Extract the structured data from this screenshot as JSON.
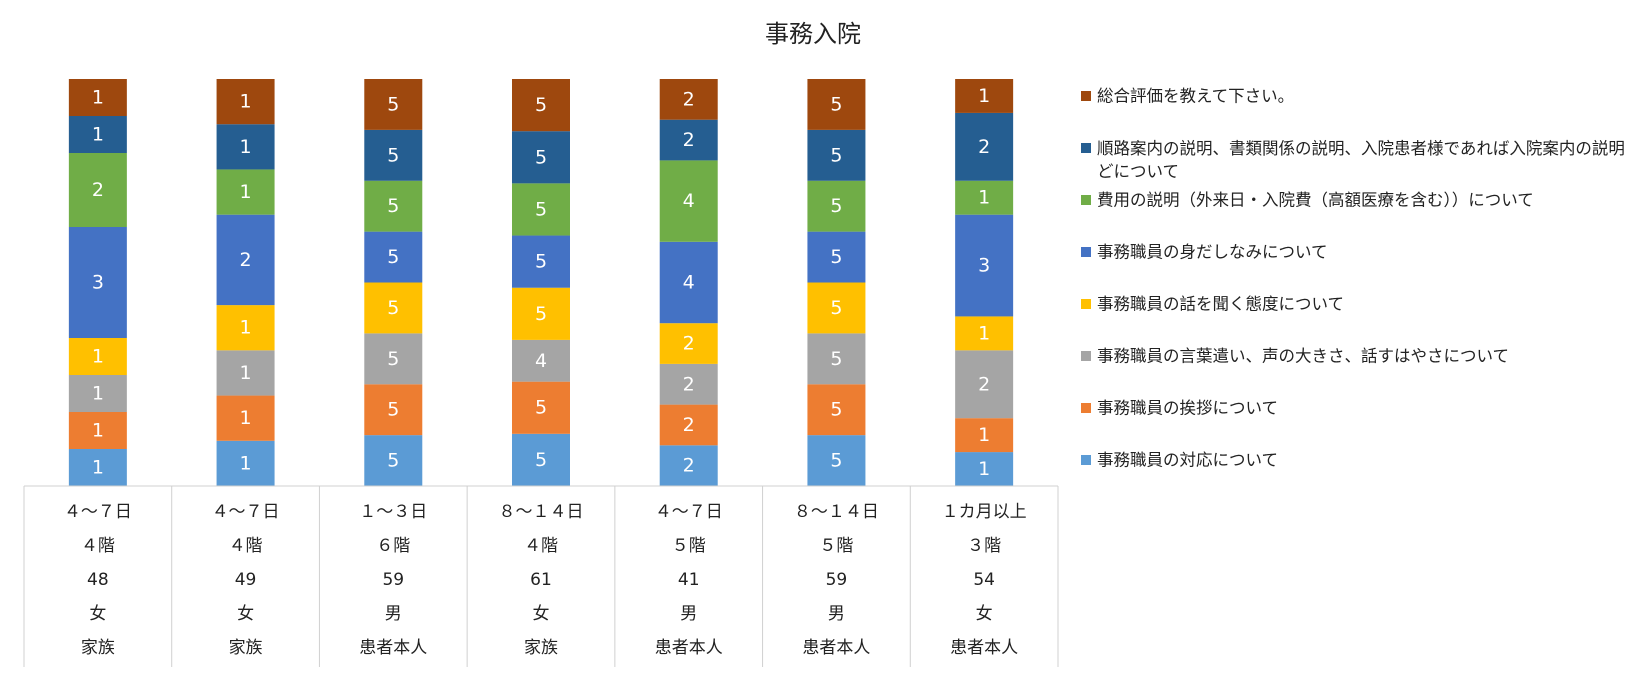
{
  "chart_data": {
    "type": "bar",
    "stacked": true,
    "title": "事務入院",
    "categories": [
      [
        "４～７日",
        "４階",
        "48",
        "女",
        "家族"
      ],
      [
        "４～７日",
        "４階",
        "49",
        "女",
        "家族"
      ],
      [
        "１～３日",
        "６階",
        "59",
        "男",
        "患者本人"
      ],
      [
        "８～１４日",
        "４階",
        "61",
        "女",
        "家族"
      ],
      [
        "４～７日",
        "５階",
        "41",
        "男",
        "患者本人"
      ],
      [
        "８～１４日",
        "５階",
        "59",
        "男",
        "患者本人"
      ],
      [
        "１カ月以上",
        "３階",
        "54",
        "女",
        "患者本人"
      ]
    ],
    "series": [
      {
        "name": "事務職員の対応について",
        "color": "#5B9BD5",
        "values": [
          1,
          1,
          5,
          5,
          2,
          5,
          1
        ]
      },
      {
        "name": "事務職員の挨拶について",
        "color": "#ED7D31",
        "values": [
          1,
          1,
          5,
          5,
          2,
          5,
          1
        ]
      },
      {
        "name": "事務職員の言葉遣い、声の大きさ、話すはやさについて",
        "color": "#A5A5A5",
        "values": [
          1,
          1,
          5,
          4,
          2,
          5,
          2
        ]
      },
      {
        "name": "事務職員の話を聞く態度について",
        "color": "#FFC000",
        "values": [
          1,
          1,
          5,
          5,
          2,
          5,
          1
        ]
      },
      {
        "name": "事務職員の身だしなみについて",
        "color": "#4472C4",
        "values": [
          3,
          2,
          5,
          5,
          4,
          5,
          3
        ]
      },
      {
        "name": "費用の説明（外来日・入院費（高額医療を含む））について",
        "color": "#70AD47",
        "values": [
          2,
          1,
          5,
          5,
          4,
          5,
          1
        ]
      },
      {
        "name": "順路案内の説明、書類関係の説明、入院患者様であれば入院案内の説明などについて",
        "color": "#255E91",
        "values": [
          1,
          1,
          5,
          5,
          2,
          5,
          2
        ]
      },
      {
        "name": "総合評価を教えて下さい。",
        "color": "#9E480E",
        "values": [
          1,
          1,
          5,
          5,
          2,
          5,
          1
        ]
      }
    ],
    "legend_position": "right",
    "legend_order": "top-down reverse of stacking",
    "grid": false
  }
}
